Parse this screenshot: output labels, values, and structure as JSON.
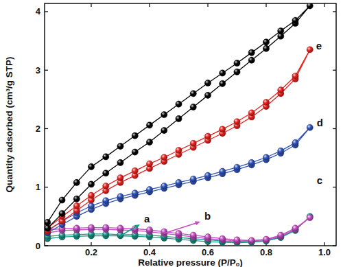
{
  "chart_data": {
    "type": "line",
    "x_label": "Relative pressure (P/Pₒ)",
    "y_label": "Quantity adsorbed (cm³/g STP)",
    "x": [
      0.05,
      0.1,
      0.15,
      0.2,
      0.25,
      0.3,
      0.35,
      0.4,
      0.45,
      0.5,
      0.55,
      0.6,
      0.65,
      0.7,
      0.75,
      0.8,
      0.85,
      0.9,
      0.95,
      0.9,
      0.85,
      0.8,
      0.75,
      0.7,
      0.65,
      0.6,
      0.55,
      0.5,
      0.45,
      0.4,
      0.35,
      0.3,
      0.25,
      0.2,
      0.15,
      0.1,
      0.05
    ],
    "xlim": [
      0.04,
      1.04
    ],
    "xticks": [
      0.2,
      0.4,
      0.6,
      0.8,
      {
        "value": 1,
        "label": "1.0"
      }
    ],
    "ylim": [
      0,
      4.14
    ],
    "yticks": [
      0,
      1,
      2,
      3,
      4
    ],
    "marker": "circle",
    "series": [
      {
        "name": "a",
        "color": "#1a9a8a",
        "values": [
          0.12,
          0.15,
          0.16,
          0.17,
          0.17,
          0.17,
          0.16,
          0.15,
          0.13,
          0.11,
          0.09,
          0.07,
          0.06,
          0.05,
          0.06,
          0.08,
          0.14,
          0.26,
          0.5,
          0.27,
          0.15,
          0.09,
          0.07,
          0.07,
          0.08,
          0.1,
          0.12,
          0.14,
          0.16,
          0.18,
          0.19,
          0.19,
          0.2,
          0.2,
          0.19,
          0.18,
          0.16
        ]
      },
      {
        "name": "b",
        "color": "#c44fc4",
        "values": [
          0.22,
          0.26,
          0.27,
          0.28,
          0.28,
          0.27,
          0.26,
          0.24,
          0.21,
          0.18,
          0.15,
          0.12,
          0.1,
          0.08,
          0.08,
          0.1,
          0.16,
          0.28,
          0.48,
          0.3,
          0.18,
          0.11,
          0.09,
          0.1,
          0.12,
          0.15,
          0.18,
          0.21,
          0.24,
          0.27,
          0.29,
          0.3,
          0.31,
          0.31,
          0.3,
          0.29,
          0.27
        ]
      },
      {
        "name": "c",
        "color": "#3355bb",
        "values": [
          0.22,
          0.36,
          0.5,
          0.62,
          0.72,
          0.8,
          0.86,
          0.92,
          0.98,
          1.04,
          1.1,
          1.16,
          1.23,
          1.3,
          1.38,
          1.47,
          1.58,
          1.72,
          2.02,
          1.76,
          1.62,
          1.51,
          1.42,
          1.34,
          1.27,
          1.2,
          1.14,
          1.08,
          1.02,
          0.96,
          0.9,
          0.84,
          0.77,
          0.68,
          0.56,
          0.42,
          0.26
        ]
      },
      {
        "name": "d",
        "color": "#e8231f",
        "values": [
          0.25,
          0.42,
          0.6,
          0.78,
          0.94,
          1.08,
          1.2,
          1.32,
          1.44,
          1.56,
          1.68,
          1.8,
          1.92,
          2.05,
          2.2,
          2.38,
          2.6,
          2.85,
          3.35,
          2.9,
          2.66,
          2.45,
          2.27,
          2.12,
          1.99,
          1.87,
          1.75,
          1.63,
          1.51,
          1.4,
          1.28,
          1.16,
          1.02,
          0.86,
          0.68,
          0.5,
          0.3
        ]
      },
      {
        "name": "e",
        "color": "#000000",
        "values": [
          0.3,
          0.55,
          0.8,
          1.05,
          1.24,
          1.42,
          1.6,
          1.77,
          1.97,
          2.17,
          2.37,
          2.57,
          2.77,
          2.97,
          3.17,
          3.37,
          3.58,
          3.8,
          4.1,
          3.85,
          3.67,
          3.48,
          3.3,
          3.12,
          2.95,
          2.78,
          2.6,
          2.42,
          2.24,
          2.06,
          1.88,
          1.7,
          1.52,
          1.35,
          1.08,
          0.78,
          0.4
        ]
      }
    ]
  }
}
